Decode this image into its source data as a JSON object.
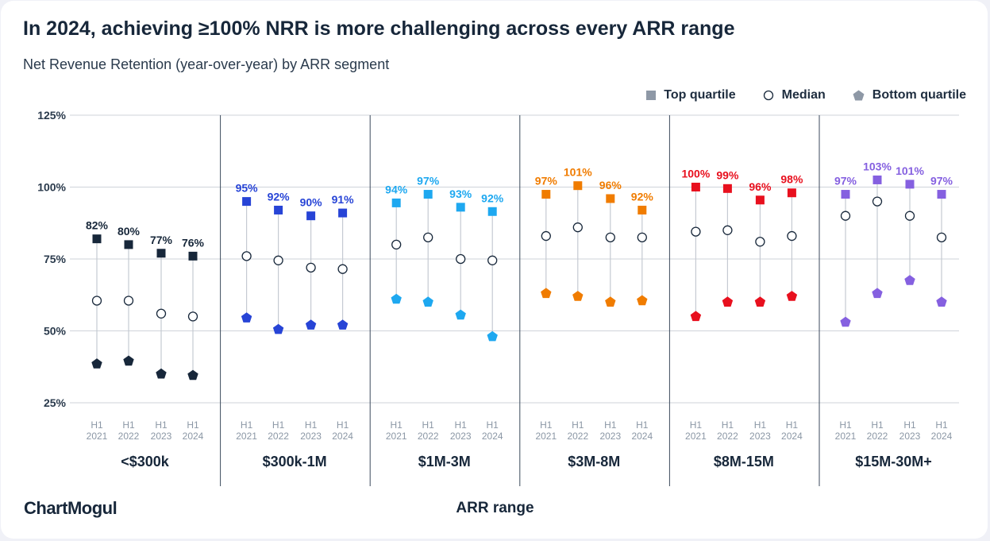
{
  "header": {
    "title": "In 2024, achieving ≥100% NRR is more challenging across every ARR range",
    "subtitle": "Net Revenue Retention (year-over-year) by ARR segment"
  },
  "legend": {
    "top": "Top quartile",
    "median": "Median",
    "bottom": "Bottom quartile"
  },
  "footer": {
    "logo": "ChartMogul",
    "xlabel": "ARR range"
  },
  "chart_data": {
    "type": "scatter",
    "title": "In 2024, achieving ≥100% NRR is more challenging across every ARR range",
    "subtitle": "Net Revenue Retention (year-over-year) by ARR segment",
    "xlabel": "ARR range",
    "ylabel": "",
    "ylim": [
      25,
      125
    ],
    "yticks": [
      25,
      50,
      75,
      100,
      125
    ],
    "ytick_labels": [
      "25%",
      "50%",
      "75%",
      "100%",
      "125%"
    ],
    "grid": true,
    "legend_position": "top-right",
    "periods": [
      [
        "H1",
        "2021"
      ],
      [
        "H1",
        "2022"
      ],
      [
        "H1",
        "2023"
      ],
      [
        "H1",
        "2024"
      ]
    ],
    "segments": [
      {
        "name": "<$300k",
        "color": "#17273a",
        "top": [
          82,
          80,
          77,
          76
        ],
        "top_labels": [
          "82%",
          "80%",
          "77%",
          "76%"
        ],
        "median": [
          60.5,
          60.5,
          56,
          55
        ],
        "bottom": [
          38.5,
          39.5,
          35,
          34.5
        ]
      },
      {
        "name": "$300k-1M",
        "color": "#2744d6",
        "top": [
          95,
          92,
          90,
          91
        ],
        "top_labels": [
          "95%",
          "92%",
          "90%",
          "91%"
        ],
        "median": [
          76,
          74.5,
          72,
          71.5
        ],
        "bottom": [
          54.5,
          50.5,
          52,
          52
        ]
      },
      {
        "name": "$1M-3M",
        "color": "#1ea8f0",
        "top": [
          94.5,
          97.5,
          93,
          91.5
        ],
        "top_labels": [
          "94%",
          "97%",
          "93%",
          "92%"
        ],
        "median": [
          80,
          82.5,
          75,
          74.5
        ],
        "bottom": [
          61,
          60,
          55.5,
          48
        ]
      },
      {
        "name": "$3M-8M",
        "color": "#f07c00",
        "top": [
          97.5,
          100.5,
          96,
          92
        ],
        "top_labels": [
          "97%",
          "101%",
          "96%",
          "92%"
        ],
        "median": [
          83,
          86,
          82.5,
          82.5
        ],
        "bottom": [
          63,
          62,
          60,
          60.5
        ]
      },
      {
        "name": "$8M-15M",
        "color": "#e8101e",
        "top": [
          100,
          99.5,
          95.5,
          98
        ],
        "top_labels": [
          "100%",
          "99%",
          "96%",
          "98%"
        ],
        "median": [
          84.5,
          85,
          81,
          83
        ],
        "bottom": [
          55,
          60,
          60,
          62
        ]
      },
      {
        "name": "$15M-30M+",
        "color": "#8560e0",
        "top": [
          97.5,
          102.5,
          101,
          97.5
        ],
        "top_labels": [
          "97%",
          "103%",
          "101%",
          "97%"
        ],
        "median": [
          90,
          95,
          90,
          82.5
        ],
        "bottom": [
          53,
          63,
          67.5,
          60
        ]
      }
    ],
    "series": [
      {
        "name": "Top quartile",
        "marker": "square"
      },
      {
        "name": "Median",
        "marker": "circle"
      },
      {
        "name": "Bottom quartile",
        "marker": "pentagon"
      }
    ]
  },
  "colors": {
    "legend_marker": "#8e98a6",
    "gridline": "#cfd3da",
    "separator": "#3b4a5c",
    "whisker": "#c5cad2"
  }
}
